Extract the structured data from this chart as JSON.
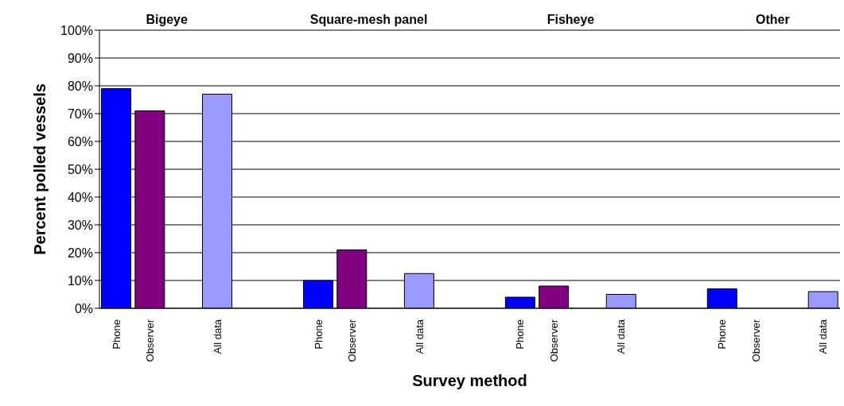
{
  "chart_data": {
    "type": "bar",
    "xlabel": "Survey method",
    "ylabel": "Percent polled vessels",
    "annotations": [
      "Bigeye",
      "Square-mesh panel",
      "Fisheye",
      "Other"
    ],
    "categories": [
      "Phone",
      "Observer",
      null,
      "All data",
      null,
      null,
      "Phone",
      "Observer",
      null,
      "All data",
      null,
      null,
      "Phone",
      "Observer",
      null,
      "All data",
      null,
      null,
      "Phone",
      "Observer",
      null,
      "All data"
    ],
    "values": [
      79,
      71,
      null,
      77,
      null,
      null,
      10,
      21,
      null,
      12.5,
      null,
      null,
      4,
      8,
      null,
      5,
      null,
      null,
      7,
      null,
      null,
      6
    ],
    "colors": [
      "#0000ff",
      "#800080",
      null,
      "#9999ff",
      null,
      null,
      "#0000ff",
      "#800080",
      null,
      "#9999ff",
      null,
      null,
      "#0000ff",
      "#800080",
      null,
      "#9999ff",
      null,
      null,
      "#0000ff",
      "#800080",
      null,
      "#9999ff"
    ],
    "ylim": [
      0,
      100
    ],
    "yticks": [
      {
        "value": 0,
        "label": "0%"
      },
      {
        "value": 10,
        "label": "10%"
      },
      {
        "value": 20,
        "label": "20%"
      },
      {
        "value": 30,
        "label": "30%"
      },
      {
        "value": 40,
        "label": "40%"
      },
      {
        "value": 50,
        "label": "50%"
      },
      {
        "value": 60,
        "label": "60%"
      },
      {
        "value": 70,
        "label": "70%"
      },
      {
        "value": 80,
        "label": "80%"
      },
      {
        "value": 90,
        "label": "90%"
      },
      {
        "value": 100,
        "label": "100%"
      }
    ],
    "grid": "y"
  }
}
